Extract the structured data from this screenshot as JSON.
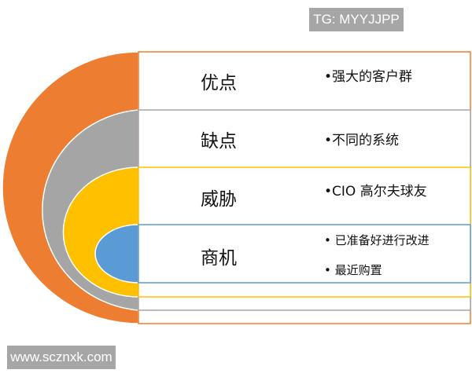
{
  "watermarks": {
    "top": "TG: MYYJJPP",
    "bottom": "www.scznxk.com"
  },
  "colors": {
    "strengths": "#ED7D31",
    "weaknesses": "#A5A5A5",
    "threats": "#FFC000",
    "opportunities": "#5B9BD5"
  },
  "sections": [
    {
      "label": "优点",
      "bullets": [
        "•强大的客户群"
      ]
    },
    {
      "label": "缺点",
      "bullets": [
        "•不同的系统"
      ]
    },
    {
      "label": "威胁",
      "bullets": [
        "•CIO 高尔夫球友"
      ]
    },
    {
      "label": "商机",
      "bullets": [
        "• 已准备好进行改进",
        "• 最近购置"
      ]
    }
  ]
}
